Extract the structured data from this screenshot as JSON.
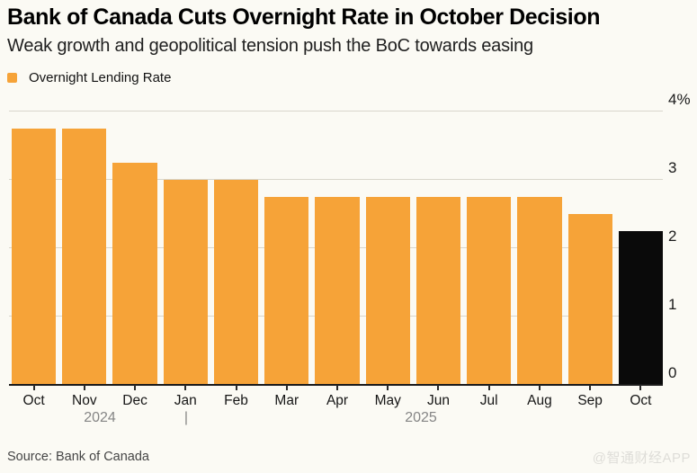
{
  "header": {
    "title": "Bank of Canada Cuts Overnight Rate in October Decision",
    "subtitle": "Weak growth and geopolitical tension push the BoC towards easing"
  },
  "legend": {
    "label": "Overnight Lending Rate",
    "swatch_color": "#F6A338"
  },
  "chart_data": {
    "type": "bar",
    "title": "Bank of Canada Cuts Overnight Rate in October Decision",
    "subtitle": "Weak growth and geopolitical tension push the BoC towards easing",
    "series_name": "Overnight Lending Rate",
    "categories": [
      "Oct",
      "Nov",
      "Dec",
      "Jan",
      "Feb",
      "Mar",
      "Apr",
      "May",
      "Jun",
      "Jul",
      "Aug",
      "Sep",
      "Oct"
    ],
    "values": [
      3.75,
      3.75,
      3.25,
      3.0,
      3.0,
      2.75,
      2.75,
      2.75,
      2.75,
      2.75,
      2.75,
      2.5,
      2.25
    ],
    "unit": "%",
    "highlight_index": 12,
    "colors": {
      "bar": "#F6A338",
      "highlight_bar": "#0A0A0A",
      "gridline": "#D9D6CC",
      "axis": "#1a1a1a"
    },
    "ylim": [
      0,
      4
    ],
    "yticks": [
      0,
      1,
      2,
      3,
      4
    ],
    "ytick_labels": [
      "0",
      "1",
      "2",
      "3",
      "4%"
    ],
    "grid": "horizontal",
    "legend_position": "top-left",
    "x_groups": [
      {
        "year": "2024",
        "months": [
          "Oct",
          "Nov",
          "Dec"
        ]
      },
      {
        "year": "2025",
        "months": [
          "Jan",
          "Feb",
          "Mar",
          "Apr",
          "May",
          "Jun",
          "Jul",
          "Aug",
          "Sep",
          "Oct"
        ]
      }
    ]
  },
  "x_axis": {
    "year_left": "2024",
    "separator": "|",
    "year_right": "2025"
  },
  "footer": {
    "source": "Source: Bank of Canada",
    "watermark": "@智通财经APP"
  }
}
